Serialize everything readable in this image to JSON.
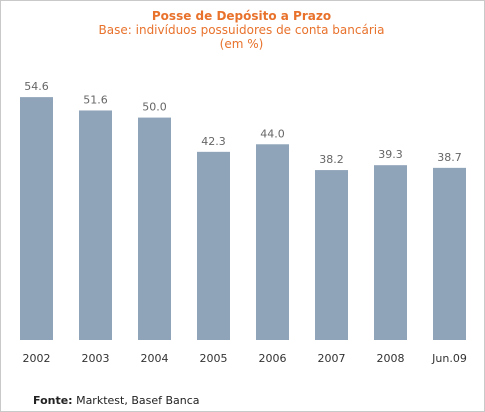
{
  "chart_data": {
    "type": "bar",
    "title": "Posse de Depósito a Prazo",
    "subtitle": "Base: indivíduos possuidores de conta bancária",
    "unit": "(em %)",
    "categories": [
      "2002",
      "2003",
      "2004",
      "2005",
      "2006",
      "2007",
      "2008",
      "Jun.09"
    ],
    "values": [
      54.6,
      51.6,
      50.0,
      42.3,
      44.0,
      38.2,
      39.3,
      38.7
    ],
    "value_labels": [
      "54.6",
      "51.6",
      "50.0",
      "42.3",
      "44.0",
      "38.2",
      "39.3",
      "38.7"
    ],
    "ylim": [
      0,
      58
    ],
    "xlabel": "",
    "ylabel": "",
    "grid": false,
    "legend": "none",
    "colors": {
      "bar": "#8fa4b9",
      "title": "#e8722c",
      "value_label": "#666666",
      "tick_label": "#333333"
    }
  },
  "source": {
    "label": "Fonte:",
    "text": "Marktest, Basef Banca"
  }
}
